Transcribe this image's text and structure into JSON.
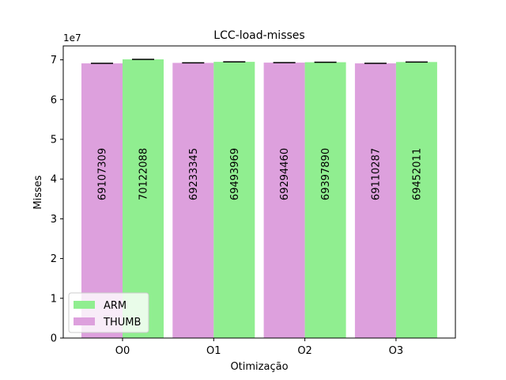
{
  "chart_data": {
    "type": "bar",
    "title": "LCC-load-misses",
    "xlabel": "Otimização",
    "ylabel": "Misses",
    "offset_label": "1e7",
    "categories": [
      "O0",
      "O1",
      "O2",
      "O3"
    ],
    "ylim": [
      0,
      73500000
    ],
    "yticks": [
      {
        "value": 0,
        "label": "0"
      },
      {
        "value": 10000000,
        "label": "1"
      },
      {
        "value": 20000000,
        "label": "2"
      },
      {
        "value": 30000000,
        "label": "3"
      },
      {
        "value": 40000000,
        "label": "4"
      },
      {
        "value": 50000000,
        "label": "5"
      },
      {
        "value": 60000000,
        "label": "6"
      },
      {
        "value": 70000000,
        "label": "7"
      }
    ],
    "grid": false,
    "legend_position": "lower-left",
    "series": [
      {
        "name": "THUMB",
        "color": "#dda0dd",
        "values": [
          69107309,
          69233345,
          69294460,
          69110287
        ],
        "labels": [
          "69107309",
          "69233345",
          "69294460",
          "69110287"
        ]
      },
      {
        "name": "ARM",
        "color": "#90ee90",
        "values": [
          70122088,
          69493969,
          69397890,
          69452011
        ],
        "labels": [
          "70122088",
          "69493969",
          "69397890",
          "69452011"
        ]
      }
    ],
    "legend_order": [
      "ARM",
      "THUMB"
    ]
  }
}
